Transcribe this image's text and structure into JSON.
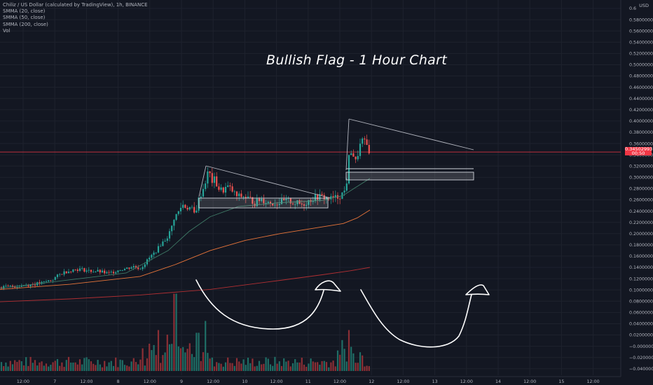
{
  "legend": {
    "main": "Chiliz / US Dollar (calculated by TradingView), 1h, BINANCE",
    "smma20": "SMMA (20, close)",
    "smma50": "SMMA (50, close)",
    "smma200": "SMMA (200, close)",
    "vol": "Vol"
  },
  "annotation_title": "Bullish Flag - 1 Hour Chart",
  "currency": "USD",
  "last_price": "0.34502993",
  "last_price_sub": "00:50",
  "colors": {
    "background": "#131722",
    "up": "#26a69a",
    "down": "#ef5350",
    "smma20": "#3f7a66",
    "smma50": "#e8753a",
    "smma200": "#b22f33",
    "annotation": "#ffffff",
    "price_line": "#f23645"
  },
  "chart_data": {
    "type": "candlestick",
    "title": "Chiliz / US Dollar (calculated by TradingView), 1h, BINANCE",
    "y_axis": {
      "ticks": [
        "0.6",
        "0.58000000",
        "0.56000000",
        "0.54000000",
        "0.52000000",
        "0.50000000",
        "0.48000000",
        "0.46000000",
        "0.44000000",
        "0.42000000",
        "0.40000000",
        "0.38000000",
        "0.36000000",
        "0.34000000",
        "0.32000000",
        "0.30000000",
        "0.28000000",
        "0.26000000",
        "0.24000000",
        "0.22000000",
        "0.20000000",
        "0.18000000",
        "0.16000000",
        "0.14000000",
        "0.12000000",
        "0.10000000",
        "0.08000000",
        "0.06000000",
        "0.04000000",
        "0.02000000",
        "−0.00000000",
        "−0.02000000",
        "−0.04000000"
      ],
      "range": [
        -0.044,
        0.605
      ]
    },
    "x_axis": {
      "ticks": [
        "12:00",
        "7",
        "12:00",
        "8",
        "12:00",
        "9",
        "12:00",
        "10",
        "12:00",
        "11",
        "12:00",
        "12",
        "12:00",
        "13",
        "12:00",
        "14",
        "12:00",
        "15",
        "12:00"
      ]
    },
    "price_key_points": [
      {
        "x": 0,
        "y": 0.1045
      },
      {
        "x": 30,
        "y": 0.1075
      },
      {
        "x": 60,
        "y": 0.112
      },
      {
        "x": 75,
        "y": 0.119
      },
      {
        "x": 90,
        "y": 0.131
      },
      {
        "x": 105,
        "y": 0.136
      },
      {
        "x": 115,
        "y": 0.137
      },
      {
        "x": 125,
        "y": 0.134
      },
      {
        "x": 140,
        "y": 0.133
      },
      {
        "x": 155,
        "y": 0.129
      },
      {
        "x": 170,
        "y": 0.136
      },
      {
        "x": 180,
        "y": 0.138
      },
      {
        "x": 190,
        "y": 0.142
      },
      {
        "x": 200,
        "y": 0.138
      },
      {
        "x": 206,
        "y": 0.146
      },
      {
        "x": 214,
        "y": 0.158
      },
      {
        "x": 222,
        "y": 0.168
      },
      {
        "x": 230,
        "y": 0.182
      },
      {
        "x": 238,
        "y": 0.192
      },
      {
        "x": 244,
        "y": 0.205
      },
      {
        "x": 248,
        "y": 0.228
      },
      {
        "x": 254,
        "y": 0.236
      },
      {
        "x": 260,
        "y": 0.252
      },
      {
        "x": 266,
        "y": 0.247
      },
      {
        "x": 272,
        "y": 0.246
      },
      {
        "x": 278,
        "y": 0.234
      },
      {
        "x": 284,
        "y": 0.262
      },
      {
        "x": 290,
        "y": 0.28
      },
      {
        "x": 294,
        "y": 0.296
      },
      {
        "x": 298,
        "y": 0.314
      },
      {
        "x": 302,
        "y": 0.292
      },
      {
        "x": 306,
        "y": 0.296
      },
      {
        "x": 312,
        "y": 0.28
      },
      {
        "x": 318,
        "y": 0.276
      },
      {
        "x": 324,
        "y": 0.284
      },
      {
        "x": 330,
        "y": 0.278
      },
      {
        "x": 338,
        "y": 0.266
      },
      {
        "x": 348,
        "y": 0.266
      },
      {
        "x": 356,
        "y": 0.262
      },
      {
        "x": 364,
        "y": 0.254
      },
      {
        "x": 372,
        "y": 0.262
      },
      {
        "x": 382,
        "y": 0.256
      },
      {
        "x": 392,
        "y": 0.254
      },
      {
        "x": 402,
        "y": 0.256
      },
      {
        "x": 412,
        "y": 0.258
      },
      {
        "x": 422,
        "y": 0.254
      },
      {
        "x": 432,
        "y": 0.252
      },
      {
        "x": 440,
        "y": 0.258
      },
      {
        "x": 448,
        "y": 0.264
      },
      {
        "x": 456,
        "y": 0.266
      },
      {
        "x": 464,
        "y": 0.264
      },
      {
        "x": 472,
        "y": 0.262
      },
      {
        "x": 480,
        "y": 0.264
      },
      {
        "x": 486,
        "y": 0.268
      },
      {
        "x": 492,
        "y": 0.276
      },
      {
        "x": 496,
        "y": 0.3
      },
      {
        "x": 499,
        "y": 0.352
      },
      {
        "x": 504,
        "y": 0.34
      },
      {
        "x": 508,
        "y": 0.326
      },
      {
        "x": 512,
        "y": 0.348
      },
      {
        "x": 516,
        "y": 0.366
      },
      {
        "x": 520,
        "y": 0.362
      },
      {
        "x": 524,
        "y": 0.356
      },
      {
        "x": 528,
        "y": 0.345
      }
    ],
    "smma20": [
      [
        0,
        0.103
      ],
      [
        100,
        0.118
      ],
      [
        180,
        0.13
      ],
      [
        240,
        0.17
      ],
      [
        270,
        0.204
      ],
      [
        300,
        0.23
      ],
      [
        340,
        0.248
      ],
      [
        400,
        0.255
      ],
      [
        460,
        0.259
      ],
      [
        490,
        0.268
      ],
      [
        510,
        0.284
      ],
      [
        528,
        0.298
      ]
    ],
    "smma50": [
      [
        0,
        0.101
      ],
      [
        100,
        0.11
      ],
      [
        200,
        0.124
      ],
      [
        250,
        0.145
      ],
      [
        300,
        0.17
      ],
      [
        350,
        0.188
      ],
      [
        400,
        0.2
      ],
      [
        450,
        0.21
      ],
      [
        490,
        0.218
      ],
      [
        510,
        0.228
      ],
      [
        528,
        0.242
      ]
    ],
    "smma200": [
      [
        0,
        0.079
      ],
      [
        100,
        0.084
      ],
      [
        200,
        0.091
      ],
      [
        300,
        0.101
      ],
      [
        400,
        0.117
      ],
      [
        460,
        0.127
      ],
      [
        500,
        0.134
      ],
      [
        528,
        0.14
      ]
    ],
    "volume_heights_key": [
      {
        "x": 250,
        "v": 0.85
      },
      {
        "x": 292,
        "v": 0.55
      },
      {
        "x": 226,
        "v": 0.45
      },
      {
        "x": 240,
        "v": 0.4
      },
      {
        "x": 282,
        "v": 0.42
      },
      {
        "x": 498,
        "v": 0.45
      },
      {
        "x": 214,
        "v": 0.3
      },
      {
        "x": 258,
        "v": 0.25
      }
    ],
    "annotations": [
      {
        "type": "pennant",
        "description": "first flag"
      },
      {
        "type": "pennant",
        "description": "second flag"
      },
      {
        "type": "arrow",
        "description": "cup arrows"
      }
    ]
  }
}
